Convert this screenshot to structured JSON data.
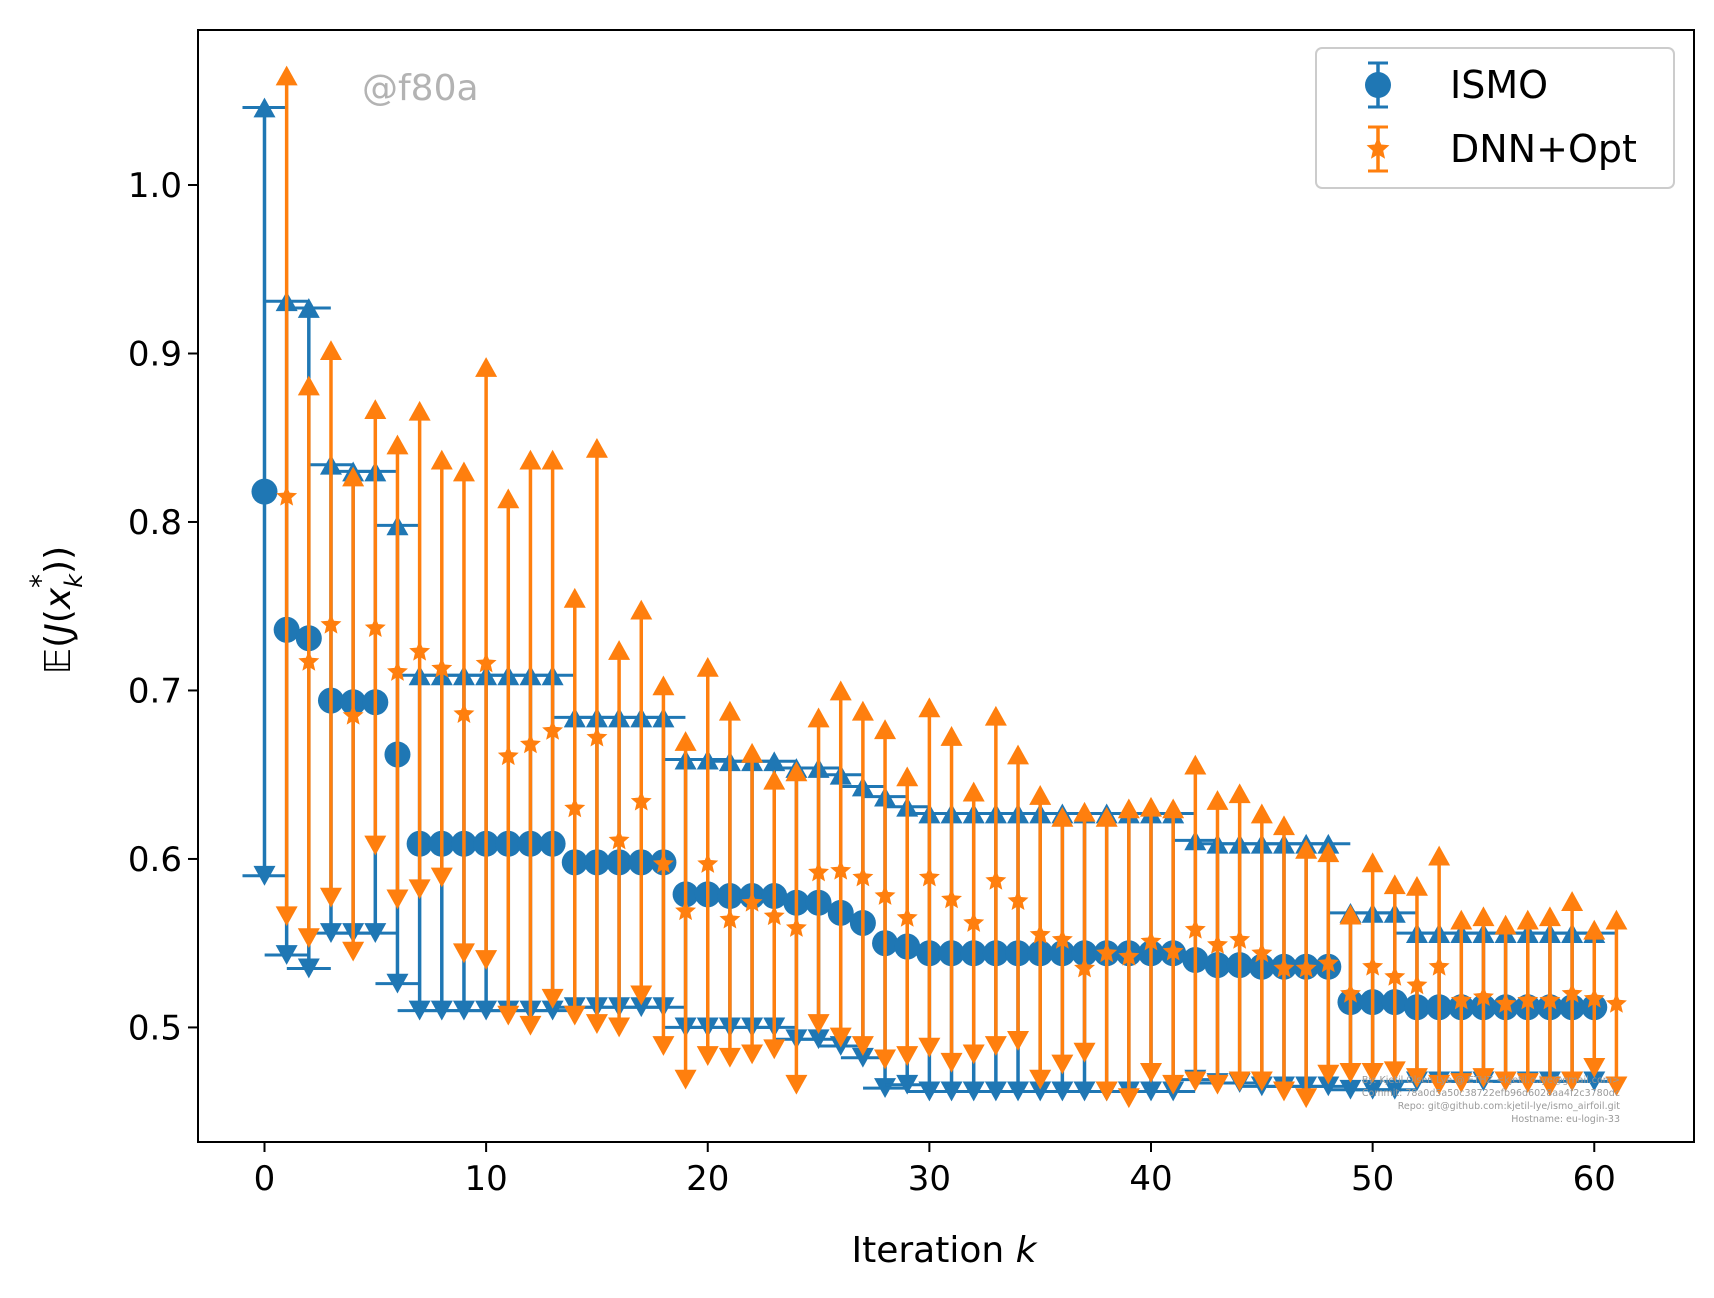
{
  "chart_data": {
    "type": "errorbar",
    "xlabel": "Iteration k",
    "xlabel_text": "Iteration ",
    "xlabel_var": "k",
    "ylabel": "𝔼(J(x*_k))",
    "xlim": [
      -3,
      64.5
    ],
    "ylim": [
      0.432,
      1.092
    ],
    "x_ticks": [
      0,
      10,
      20,
      30,
      40,
      50,
      60
    ],
    "x_tick_labels": [
      "0",
      "10",
      "20",
      "30",
      "40",
      "50",
      "60"
    ],
    "y_ticks": [
      0.5,
      0.6,
      0.7,
      0.8,
      0.9,
      1.0
    ],
    "y_tick_labels": [
      "0.5",
      "0.6",
      "0.7",
      "0.8",
      "0.9",
      "1.0"
    ],
    "legend_position": "upper right",
    "watermark": "@f80a",
    "footer_lines": [
      "By: Kjetil Olsen Lye @ ETHZ <kjetil.o.lye@gmail.com>",
      "Commit: 78a0d5a50c38722efb96d6028aa4f2c3780dc",
      "Repo: git@github.com:kjetil-lye/ismo_airfoil.git",
      "Hostname: eu-login-33"
    ],
    "series": [
      {
        "name": "ISMO",
        "color": "#1f77b4",
        "marker": "circle",
        "x": [
          0,
          1,
          2,
          3,
          4,
          5,
          6,
          7,
          8,
          9,
          10,
          11,
          12,
          13,
          14,
          15,
          16,
          17,
          18,
          19,
          20,
          21,
          22,
          23,
          24,
          25,
          26,
          27,
          28,
          29,
          30,
          31,
          32,
          33,
          34,
          35,
          36,
          37,
          38,
          39,
          40,
          41,
          42,
          43,
          44,
          45,
          46,
          47,
          48,
          49,
          50,
          51,
          52,
          53,
          54,
          55,
          56,
          57,
          58,
          59,
          60
        ],
        "mean": [
          0.818,
          0.736,
          0.731,
          0.694,
          0.693,
          0.693,
          0.662,
          0.609,
          0.609,
          0.609,
          0.609,
          0.609,
          0.609,
          0.609,
          0.598,
          0.598,
          0.598,
          0.598,
          0.598,
          0.579,
          0.579,
          0.578,
          0.578,
          0.578,
          0.574,
          0.574,
          0.568,
          0.562,
          0.55,
          0.548,
          0.544,
          0.544,
          0.544,
          0.544,
          0.544,
          0.544,
          0.544,
          0.544,
          0.544,
          0.544,
          0.544,
          0.544,
          0.54,
          0.537,
          0.537,
          0.536,
          0.536,
          0.536,
          0.536,
          0.515,
          0.515,
          0.515,
          0.512,
          0.512,
          0.512,
          0.512,
          0.512,
          0.512,
          0.512,
          0.512,
          0.512
        ],
        "upper": [
          1.046,
          0.931,
          0.927,
          0.834,
          0.83,
          0.83,
          0.798,
          0.709,
          0.709,
          0.709,
          0.709,
          0.709,
          0.709,
          0.709,
          0.684,
          0.684,
          0.684,
          0.684,
          0.684,
          0.659,
          0.659,
          0.658,
          0.658,
          0.658,
          0.654,
          0.654,
          0.65,
          0.643,
          0.637,
          0.631,
          0.627,
          0.627,
          0.627,
          0.627,
          0.627,
          0.627,
          0.627,
          0.627,
          0.627,
          0.627,
          0.627,
          0.627,
          0.611,
          0.609,
          0.609,
          0.609,
          0.609,
          0.609,
          0.609,
          0.568,
          0.568,
          0.568,
          0.556,
          0.556,
          0.556,
          0.556,
          0.556,
          0.556,
          0.556,
          0.556,
          0.556
        ],
        "lower": [
          0.59,
          0.543,
          0.535,
          0.556,
          0.556,
          0.556,
          0.526,
          0.51,
          0.51,
          0.51,
          0.51,
          0.51,
          0.51,
          0.51,
          0.512,
          0.512,
          0.512,
          0.512,
          0.512,
          0.5,
          0.5,
          0.5,
          0.5,
          0.5,
          0.493,
          0.493,
          0.489,
          0.482,
          0.464,
          0.466,
          0.462,
          0.462,
          0.462,
          0.462,
          0.462,
          0.462,
          0.462,
          0.462,
          0.462,
          0.462,
          0.462,
          0.462,
          0.469,
          0.467,
          0.467,
          0.465,
          0.465,
          0.465,
          0.465,
          0.463,
          0.463,
          0.463,
          0.468,
          0.468,
          0.468,
          0.468,
          0.468,
          0.468,
          0.468,
          0.468,
          0.468
        ]
      },
      {
        "name": "DNN+Opt",
        "color": "#ff7f0e",
        "marker": "star",
        "x": [
          1,
          2,
          3,
          4,
          5,
          6,
          7,
          8,
          9,
          10,
          11,
          12,
          13,
          14,
          15,
          16,
          17,
          18,
          19,
          20,
          21,
          22,
          23,
          24,
          25,
          26,
          27,
          28,
          29,
          30,
          31,
          32,
          33,
          34,
          35,
          36,
          37,
          38,
          39,
          40,
          41,
          42,
          43,
          44,
          45,
          46,
          47,
          48,
          49,
          50,
          51,
          52,
          53,
          54,
          55,
          56,
          57,
          58,
          59,
          60,
          61
        ],
        "mean": [
          0.815,
          0.717,
          0.739,
          0.685,
          0.737,
          0.711,
          0.723,
          0.713,
          0.686,
          0.716,
          0.661,
          0.668,
          0.676,
          0.63,
          0.672,
          0.611,
          0.634,
          0.597,
          0.569,
          0.597,
          0.564,
          0.574,
          0.566,
          0.559,
          0.592,
          0.593,
          0.589,
          0.578,
          0.565,
          0.589,
          0.576,
          0.562,
          0.587,
          0.575,
          0.555,
          0.552,
          0.535,
          0.544,
          0.542,
          0.551,
          0.545,
          0.558,
          0.549,
          0.552,
          0.544,
          0.535,
          0.535,
          0.538,
          0.52,
          0.536,
          0.53,
          0.525,
          0.536,
          0.516,
          0.518,
          0.514,
          0.516,
          0.516,
          0.52,
          0.517,
          0.514
        ],
        "upper": [
          1.065,
          0.881,
          0.902,
          0.827,
          0.867,
          0.846,
          0.866,
          0.837,
          0.83,
          0.892,
          0.814,
          0.837,
          0.837,
          0.755,
          0.844,
          0.724,
          0.748,
          0.703,
          0.67,
          0.714,
          0.688,
          0.663,
          0.647,
          0.652,
          0.684,
          0.7,
          0.688,
          0.677,
          0.649,
          0.69,
          0.673,
          0.64,
          0.685,
          0.662,
          0.638,
          0.625,
          0.628,
          0.625,
          0.63,
          0.631,
          0.63,
          0.656,
          0.635,
          0.639,
          0.627,
          0.62,
          0.606,
          0.604,
          0.567,
          0.598,
          0.585,
          0.584,
          0.602,
          0.564,
          0.566,
          0.561,
          0.564,
          0.566,
          0.575,
          0.558,
          0.564
        ],
        "lower": [
          0.566,
          0.553,
          0.577,
          0.545,
          0.608,
          0.576,
          0.582,
          0.589,
          0.544,
          0.54,
          0.507,
          0.501,
          0.517,
          0.507,
          0.502,
          0.5,
          0.519,
          0.489,
          0.469,
          0.483,
          0.482,
          0.484,
          0.487,
          0.466,
          0.502,
          0.494,
          0.489,
          0.481,
          0.483,
          0.488,
          0.479,
          0.484,
          0.489,
          0.492,
          0.469,
          0.478,
          0.485,
          0.462,
          0.458,
          0.473,
          0.466,
          0.468,
          0.466,
          0.468,
          0.468,
          0.462,
          0.458,
          0.472,
          0.473,
          0.473,
          0.474,
          0.47,
          0.466,
          0.467,
          0.47,
          0.468,
          0.467,
          0.465,
          0.468,
          0.476,
          0.465
        ]
      }
    ]
  }
}
